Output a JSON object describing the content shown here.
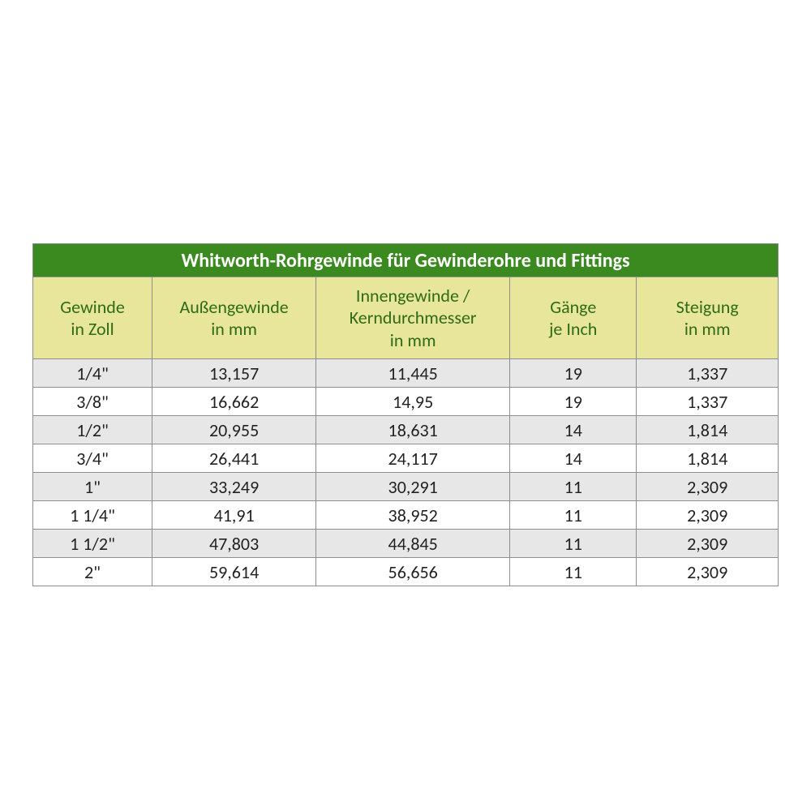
{
  "table": {
    "type": "table",
    "title": "Whitworth-Rohrgewinde für Gewinderohre und Fittings",
    "title_style": {
      "background_color": "#3a8a1f",
      "text_color": "#ffffff",
      "font_weight": "bold",
      "font_size_pt": 18
    },
    "header_style": {
      "background_color": "#e8e69a",
      "text_color": "#2f6b18",
      "font_size_pt": 16
    },
    "row_stripe": {
      "odd_background": "#e7e7e7",
      "even_background": "#ffffff",
      "text_color": "#222222",
      "font_size_pt": 16
    },
    "border_color": "#8e8e8e",
    "column_widths_pct": [
      16,
      22,
      26,
      17,
      19
    ],
    "columns": [
      {
        "line1": "Gewinde",
        "line2": "in Zoll"
      },
      {
        "line1": "Außengewinde",
        "line2": "in mm"
      },
      {
        "line1": "Innengewinde /",
        "line2": "Kerndurchmesser",
        "line3": "in mm"
      },
      {
        "line1": "Gänge",
        "line2": "je Inch"
      },
      {
        "line1": "Steigung",
        "line2": "in mm"
      }
    ],
    "rows": [
      [
        "1/4\"",
        "13,157",
        "11,445",
        "19",
        "1,337"
      ],
      [
        "3/8\"",
        "16,662",
        "14,95",
        "19",
        "1,337"
      ],
      [
        "1/2\"",
        "20,955",
        "18,631",
        "14",
        "1,814"
      ],
      [
        "3/4\"",
        "26,441",
        "24,117",
        "14",
        "1,814"
      ],
      [
        "1\"",
        "33,249",
        "30,291",
        "11",
        "2,309"
      ],
      [
        "1 1/4\"",
        "41,91",
        "38,952",
        "11",
        "2,309"
      ],
      [
        "1 1/2\"",
        "47,803",
        "44,845",
        "11",
        "2,309"
      ],
      [
        "2\"",
        "59,614",
        "56,656",
        "11",
        "2,309"
      ]
    ]
  }
}
